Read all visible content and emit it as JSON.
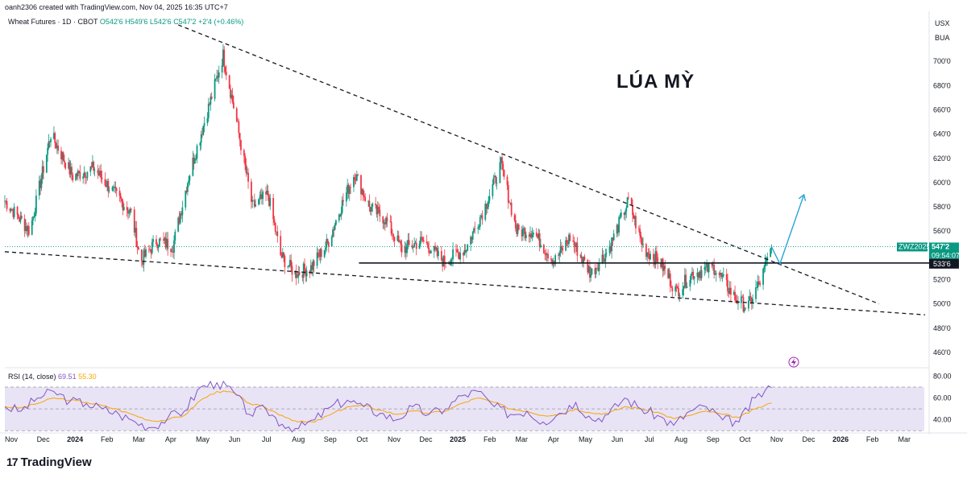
{
  "header": {
    "author_line": "oanh2306 created with TradingView.com, Nov 04, 2025 16:35 UTC+7"
  },
  "symbol": {
    "name": "Wheat Futures · 1D · CBOT",
    "open": "O542'6",
    "high": "H549'6",
    "low": "L542'6",
    "close": "C547'2",
    "change": "+2'4 (+0.46%)"
  },
  "units": {
    "currency": "USX",
    "unit": "BUA"
  },
  "annotation": "LÚA MỲ",
  "price_tags": {
    "symbol_tag": "ZWZ2025",
    "last_price": "547'2",
    "countdown": "09:54:07",
    "level_label": "533'6"
  },
  "rsi": {
    "label": "RSI (14, close)",
    "value": "69.51",
    "ma_value": "55.30"
  },
  "brand": {
    "logo_text": "TradingView"
  },
  "colors": {
    "up": "#089981",
    "down": "#f23645",
    "rsi": "#7e57c2",
    "rsi_ma": "#f7a600",
    "rsi_band": "#e9e3f6",
    "arrow": "#2aa5d8",
    "last": "#089981"
  },
  "icons": {
    "lightning": "lightning-icon"
  },
  "chart_data": [
    {
      "type": "candlestick",
      "title": "Wheat Futures · 1D · CBOT",
      "y_axis": {
        "ticks": [
          460,
          480,
          500,
          520,
          540,
          560,
          580,
          600,
          620,
          640,
          660,
          680,
          700
        ],
        "tick_labels": [
          "460'0",
          "480'0",
          "500'0",
          "520'0",
          "540'0",
          "560'0",
          "580'0",
          "600'0",
          "620'0",
          "640'0",
          "660'0",
          "680'0",
          "700'0"
        ],
        "ylim": [
          452,
          724
        ]
      },
      "x_axis": {
        "tick_labels": [
          "Nov",
          "Dec",
          "2024",
          "Feb",
          "Mar",
          "Apr",
          "May",
          "Jun",
          "Jul",
          "Aug",
          "Sep",
          "Oct",
          "Nov",
          "Dec",
          "2025",
          "Feb",
          "Mar",
          "Apr",
          "May",
          "Jun",
          "Jul",
          "Aug",
          "Sep",
          "Oct",
          "Nov",
          "Dec",
          "2026",
          "Feb",
          "Mar"
        ],
        "range": [
          "2023-11-01",
          "2026-03-31"
        ]
      },
      "close_path_approx": [
        {
          "x": "2023-11-01",
          "y": 585
        },
        {
          "x": "2023-11-25",
          "y": 560
        },
        {
          "x": "2023-12-15",
          "y": 640
        },
        {
          "x": "2024-01-05",
          "y": 605
        },
        {
          "x": "2024-01-25",
          "y": 612
        },
        {
          "x": "2024-02-15",
          "y": 590
        },
        {
          "x": "2024-03-01",
          "y": 575
        },
        {
          "x": "2024-03-10",
          "y": 535
        },
        {
          "x": "2024-03-25",
          "y": 552
        },
        {
          "x": "2024-04-10",
          "y": 548
        },
        {
          "x": "2024-04-25",
          "y": 605
        },
        {
          "x": "2024-05-10",
          "y": 650
        },
        {
          "x": "2024-05-20",
          "y": 680
        },
        {
          "x": "2024-05-28",
          "y": 705
        },
        {
          "x": "2024-06-10",
          "y": 650
        },
        {
          "x": "2024-06-25",
          "y": 580
        },
        {
          "x": "2024-07-10",
          "y": 590
        },
        {
          "x": "2024-07-22",
          "y": 540
        },
        {
          "x": "2024-08-05",
          "y": 525
        },
        {
          "x": "2024-08-20",
          "y": 530
        },
        {
          "x": "2024-09-05",
          "y": 550
        },
        {
          "x": "2024-09-20",
          "y": 585
        },
        {
          "x": "2024-10-01",
          "y": 608
        },
        {
          "x": "2024-10-15",
          "y": 580
        },
        {
          "x": "2024-10-30",
          "y": 570
        },
        {
          "x": "2024-11-15",
          "y": 545
        },
        {
          "x": "2024-12-05",
          "y": 552
        },
        {
          "x": "2024-12-25",
          "y": 535
        },
        {
          "x": "2025-01-15",
          "y": 545
        },
        {
          "x": "2025-02-05",
          "y": 585
        },
        {
          "x": "2025-02-18",
          "y": 615
        },
        {
          "x": "2025-03-05",
          "y": 560
        },
        {
          "x": "2025-03-20",
          "y": 560
        },
        {
          "x": "2025-04-10",
          "y": 535
        },
        {
          "x": "2025-04-25",
          "y": 555
        },
        {
          "x": "2025-05-15",
          "y": 525
        },
        {
          "x": "2025-06-01",
          "y": 545
        },
        {
          "x": "2025-06-20",
          "y": 585
        },
        {
          "x": "2025-07-05",
          "y": 545
        },
        {
          "x": "2025-07-20",
          "y": 535
        },
        {
          "x": "2025-08-05",
          "y": 510
        },
        {
          "x": "2025-08-20",
          "y": 525
        },
        {
          "x": "2025-09-10",
          "y": 530
        },
        {
          "x": "2025-09-30",
          "y": 505
        },
        {
          "x": "2025-10-12",
          "y": 497
        },
        {
          "x": "2025-10-25",
          "y": 520
        },
        {
          "x": "2025-11-04",
          "y": 547.25
        }
      ],
      "lines": {
        "upper_trendline": [
          {
            "x": "2024-04-15",
            "y": 730
          },
          {
            "x": "2026-02-15",
            "y": 500
          }
        ],
        "lower_trendline": [
          {
            "x": "2023-11-01",
            "y": 543
          },
          {
            "x": "2026-03-31",
            "y": 491
          }
        ],
        "horizontal_level": {
          "from": "2024-10-05",
          "to": "2026-03-31",
          "y": 533.75
        },
        "forecast_arrow": [
          {
            "x": "2025-11-04",
            "y": 547
          },
          {
            "x": "2025-11-12",
            "y": 533
          },
          {
            "x": "2025-12-05",
            "y": 590
          }
        ]
      },
      "last_price": 547.25,
      "level": 533.75
    },
    {
      "type": "line",
      "title": "RSI (14, close)",
      "y_axis": {
        "ticks": [
          40,
          60,
          80
        ],
        "tick_labels": [
          "40.00",
          "60.00",
          "80.00"
        ],
        "ylim": [
          28,
          84
        ],
        "bands": [
          30,
          50,
          70
        ]
      },
      "series": [
        {
          "name": "RSI",
          "values": [
            52,
            48,
            60,
            66,
            57,
            55,
            50,
            45,
            38,
            33,
            42,
            48,
            70,
            74,
            66,
            45,
            50,
            36,
            32,
            40,
            52,
            58,
            52,
            46,
            40,
            52,
            45,
            50,
            62,
            66,
            52,
            45,
            48,
            38,
            46,
            56,
            40,
            45,
            60,
            50,
            44,
            35,
            48,
            52,
            40,
            38,
            60,
            69.51
          ]
        },
        {
          "name": "MA",
          "values": [
            52,
            51,
            55,
            60,
            58,
            56,
            53,
            49,
            44,
            39,
            40,
            44,
            58,
            66,
            65,
            55,
            51,
            44,
            38,
            38,
            45,
            52,
            53,
            49,
            45,
            48,
            46,
            48,
            55,
            60,
            56,
            50,
            48,
            44,
            45,
            50,
            46,
            46,
            52,
            50,
            47,
            41,
            44,
            48,
            45,
            42,
            50,
            55.3
          ]
        }
      ]
    }
  ]
}
